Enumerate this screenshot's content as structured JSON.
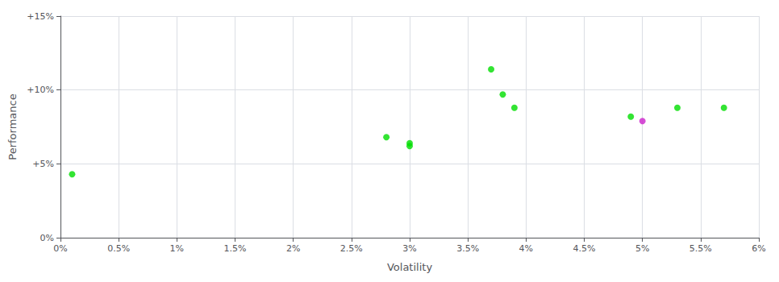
{
  "chart_data": {
    "type": "scatter",
    "xlabel": "Volatility",
    "ylabel": "Performance",
    "xlim": [
      0.0,
      0.06
    ],
    "ylim": [
      0.0,
      0.15
    ],
    "xticks": [
      {
        "value": 0.0,
        "label": "0%"
      },
      {
        "value": 0.005,
        "label": "0.5%"
      },
      {
        "value": 0.01,
        "label": "1%"
      },
      {
        "value": 0.015,
        "label": "1.5%"
      },
      {
        "value": 0.02,
        "label": "2%"
      },
      {
        "value": 0.025,
        "label": "2.5%"
      },
      {
        "value": 0.03,
        "label": "3%"
      },
      {
        "value": 0.035,
        "label": "3.5%"
      },
      {
        "value": 0.04,
        "label": "4%"
      },
      {
        "value": 0.045,
        "label": "4.5%"
      },
      {
        "value": 0.05,
        "label": "5%"
      },
      {
        "value": 0.055,
        "label": "5.5%"
      },
      {
        "value": 0.06,
        "label": "6%"
      }
    ],
    "yticks": [
      {
        "value": 0.0,
        "label": "0%"
      },
      {
        "value": 0.05,
        "label": "+5%"
      },
      {
        "value": 0.1,
        "label": "+10%"
      },
      {
        "value": 0.15,
        "label": "+15%"
      }
    ],
    "grid": true,
    "series": [
      {
        "color": "#00dd00",
        "x": [
          0.001,
          0.028,
          0.03,
          0.03,
          0.037,
          0.038,
          0.039,
          0.049,
          0.053,
          0.057
        ],
        "values": [
          0.043,
          0.068,
          0.064,
          0.062,
          0.114,
          0.097,
          0.088,
          0.082,
          0.088,
          0.088
        ]
      },
      {
        "color": "#cc22cc",
        "x": [
          0.05
        ],
        "values": [
          0.079
        ]
      }
    ]
  }
}
